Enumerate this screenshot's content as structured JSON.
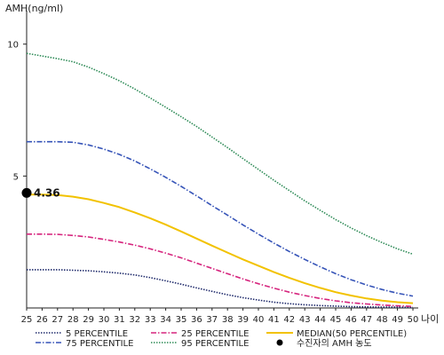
{
  "chart_data": {
    "type": "line",
    "ylabel": "AMH(ng/ml)",
    "xlabel": "나이",
    "xlim": [
      25,
      50
    ],
    "ylim": [
      0,
      11
    ],
    "x_ticks": [
      25,
      26,
      27,
      28,
      29,
      30,
      31,
      32,
      33,
      34,
      35,
      36,
      37,
      38,
      39,
      40,
      41,
      42,
      43,
      44,
      45,
      46,
      47,
      48,
      49,
      50
    ],
    "y_ticks": [
      5,
      10
    ],
    "x": [
      25,
      26,
      27,
      28,
      29,
      30,
      31,
      32,
      33,
      34,
      35,
      36,
      37,
      38,
      39,
      40,
      41,
      42,
      43,
      44,
      45,
      46,
      47,
      48,
      49,
      50
    ],
    "series": [
      {
        "name": "5 PERCENTILE",
        "color": "#1f2a6b",
        "style": "dotted",
        "values": [
          1.45,
          1.45,
          1.45,
          1.43,
          1.41,
          1.37,
          1.32,
          1.25,
          1.15,
          1.03,
          0.9,
          0.76,
          0.63,
          0.5,
          0.39,
          0.3,
          0.22,
          0.16,
          0.12,
          0.09,
          0.07,
          0.05,
          0.04,
          0.03,
          0.03,
          0.02
        ]
      },
      {
        "name": "25 PERCENTILE",
        "color": "#d6257e",
        "style": "dashdot",
        "values": [
          2.8,
          2.8,
          2.79,
          2.75,
          2.69,
          2.6,
          2.5,
          2.38,
          2.24,
          2.08,
          1.9,
          1.7,
          1.5,
          1.3,
          1.1,
          0.92,
          0.75,
          0.6,
          0.47,
          0.36,
          0.27,
          0.2,
          0.15,
          0.11,
          0.08,
          0.06
        ]
      },
      {
        "name": "MEDIAN(50 PERCENTILE)",
        "color": "#f2c200",
        "style": "solid",
        "values": [
          4.3,
          4.3,
          4.28,
          4.22,
          4.12,
          3.98,
          3.82,
          3.62,
          3.4,
          3.16,
          2.9,
          2.63,
          2.36,
          2.1,
          1.84,
          1.6,
          1.36,
          1.14,
          0.94,
          0.76,
          0.6,
          0.47,
          0.36,
          0.28,
          0.22,
          0.18
        ]
      },
      {
        "name": "75 PERCENTILE",
        "color": "#3654b8",
        "style": "dashdot",
        "values": [
          6.3,
          6.3,
          6.3,
          6.28,
          6.18,
          6.02,
          5.82,
          5.57,
          5.27,
          4.95,
          4.61,
          4.25,
          3.88,
          3.52,
          3.15,
          2.8,
          2.46,
          2.14,
          1.84,
          1.56,
          1.3,
          1.07,
          0.87,
          0.7,
          0.56,
          0.45
        ]
      },
      {
        "name": "95 PERCENTILE",
        "color": "#2e8b57",
        "style": "dotted",
        "values": [
          9.65,
          9.55,
          9.45,
          9.33,
          9.13,
          8.88,
          8.61,
          8.3,
          7.96,
          7.61,
          7.25,
          6.88,
          6.48,
          6.08,
          5.66,
          5.25,
          4.84,
          4.45,
          4.06,
          3.7,
          3.35,
          3.03,
          2.74,
          2.48,
          2.24,
          2.04
        ]
      }
    ],
    "points": [
      {
        "name": "수진자의 AMH 농도",
        "x": 25,
        "y": 4.36,
        "label": "4.36",
        "color": "#000000"
      }
    ],
    "grid": false,
    "legend_position": "bottom"
  }
}
